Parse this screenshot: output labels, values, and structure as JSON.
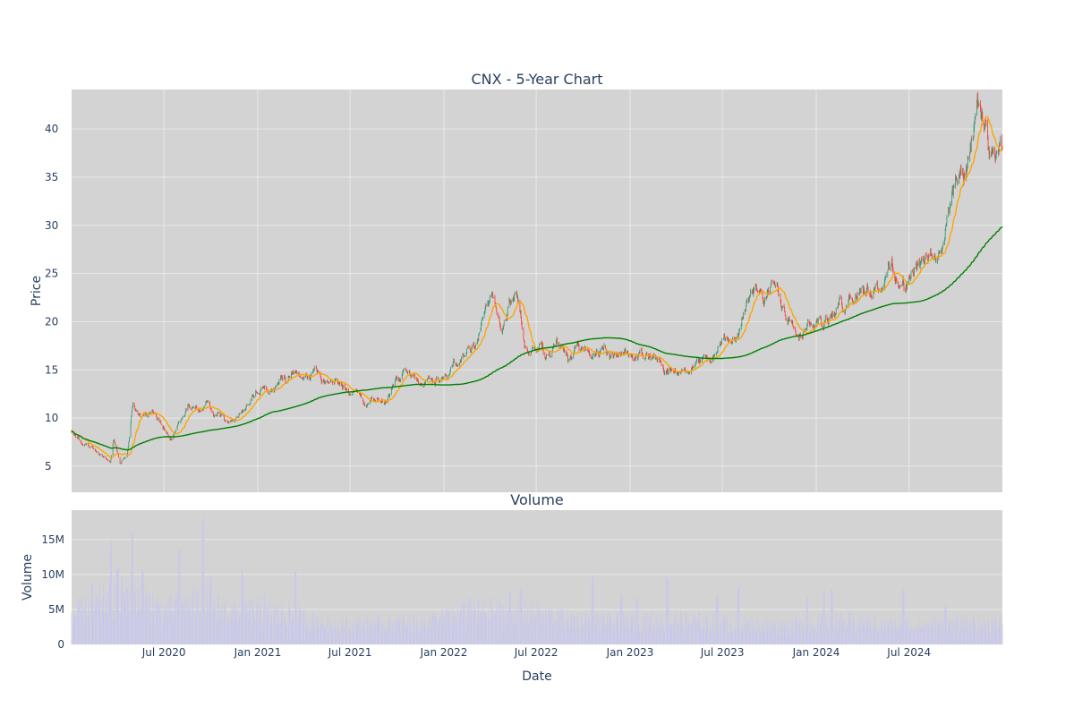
{
  "chart_data": {
    "type": "candlestick",
    "title": "CNX - 5-Year Chart",
    "price_panel": {
      "ylabel": "Price",
      "yticks": [
        5,
        10,
        15,
        20,
        25,
        30,
        35,
        40
      ],
      "ylim": [
        2.3,
        44.1
      ],
      "colors": {
        "up": "#3d9970",
        "down": "#ff4136",
        "ma_short": "#ffa500",
        "ma_long": "#008000"
      },
      "close_anchors": [
        [
          "2020-01-02",
          8.5
        ],
        [
          "2020-01-20",
          7.5
        ],
        [
          "2020-02-10",
          6.8
        ],
        [
          "2020-02-28",
          6.2
        ],
        [
          "2020-03-18",
          5.0
        ],
        [
          "2020-03-25",
          7.5
        ],
        [
          "2020-04-06",
          5.2
        ],
        [
          "2020-04-20",
          6.5
        ],
        [
          "2020-05-01",
          11.5
        ],
        [
          "2020-05-15",
          10.2
        ],
        [
          "2020-06-01",
          10.5
        ],
        [
          "2020-06-15",
          10.8
        ],
        [
          "2020-07-01",
          9.5
        ],
        [
          "2020-07-15",
          8.5
        ],
        [
          "2020-08-01",
          9.5
        ],
        [
          "2020-08-20",
          11.5
        ],
        [
          "2020-09-10",
          10.5
        ],
        [
          "2020-09-25",
          11.2
        ],
        [
          "2020-10-15",
          10.2
        ],
        [
          "2020-11-01",
          9.0
        ],
        [
          "2020-11-20",
          9.8
        ],
        [
          "2020-12-10",
          11.0
        ],
        [
          "2021-01-01",
          13.0
        ],
        [
          "2021-01-20",
          12.5
        ],
        [
          "2021-02-10",
          13.5
        ],
        [
          "2021-03-01",
          14.2
        ],
        [
          "2021-03-15",
          15.2
        ],
        [
          "2021-04-01",
          14.0
        ],
        [
          "2021-05-01",
          14.2
        ],
        [
          "2021-06-01",
          14.0
        ],
        [
          "2021-06-20",
          13.2
        ],
        [
          "2021-07-10",
          12.5
        ],
        [
          "2021-08-01",
          11.2
        ],
        [
          "2021-08-20",
          11.5
        ],
        [
          "2021-09-10",
          12.0
        ],
        [
          "2021-10-01",
          13.5
        ],
        [
          "2021-10-20",
          15.0
        ],
        [
          "2021-11-10",
          14.5
        ],
        [
          "2021-12-01",
          13.8
        ],
        [
          "2022-01-01",
          14.5
        ],
        [
          "2022-02-01",
          16.0
        ],
        [
          "2022-03-01",
          17.5
        ],
        [
          "2022-03-20",
          21.0
        ],
        [
          "2022-04-10",
          21.5
        ],
        [
          "2022-04-25",
          19.5
        ],
        [
          "2022-05-10",
          22.0
        ],
        [
          "2022-05-25",
          22.5
        ],
        [
          "2022-06-10",
          17.0
        ],
        [
          "2022-06-25",
          16.5
        ],
        [
          "2022-07-10",
          18.0
        ],
        [
          "2022-07-25",
          16.5
        ],
        [
          "2022-08-10",
          17.5
        ],
        [
          "2022-09-01",
          15.5
        ],
        [
          "2022-09-20",
          17.5
        ],
        [
          "2022-10-10",
          18.0
        ],
        [
          "2022-10-25",
          17.0
        ],
        [
          "2022-11-10",
          16.5
        ],
        [
          "2022-12-01",
          16.2
        ],
        [
          "2023-01-01",
          16.0
        ],
        [
          "2023-02-01",
          16.5
        ],
        [
          "2023-03-01",
          15.5
        ],
        [
          "2023-04-01",
          15.5
        ],
        [
          "2023-05-01",
          16.0
        ],
        [
          "2023-05-25",
          15.5
        ],
        [
          "2023-06-10",
          16.5
        ],
        [
          "2023-07-01",
          17.5
        ],
        [
          "2023-07-20",
          18.5
        ],
        [
          "2023-08-10",
          21.0
        ],
        [
          "2023-09-01",
          22.5
        ],
        [
          "2023-09-20",
          22.0
        ],
        [
          "2023-10-10",
          23.0
        ],
        [
          "2023-11-01",
          21.5
        ],
        [
          "2023-12-01",
          20.0
        ],
        [
          "2023-12-20",
          20.5
        ],
        [
          "2024-01-15",
          19.8
        ],
        [
          "2024-02-01",
          20.5
        ],
        [
          "2024-03-01",
          22.0
        ],
        [
          "2024-04-01",
          24.0
        ],
        [
          "2024-05-01",
          24.0
        ],
        [
          "2024-06-01",
          25.5
        ],
        [
          "2024-06-20",
          24.0
        ],
        [
          "2024-07-10",
          25.5
        ],
        [
          "2024-08-01",
          25.5
        ],
        [
          "2024-08-20",
          26.5
        ],
        [
          "2024-09-05",
          28.0
        ],
        [
          "2024-09-20",
          32.0
        ],
        [
          "2024-10-05",
          35.0
        ],
        [
          "2024-10-20",
          35.5
        ],
        [
          "2024-11-05",
          38.5
        ],
        [
          "2024-11-15",
          41.0
        ],
        [
          "2024-11-25",
          40.0
        ],
        [
          "2024-12-05",
          36.0
        ],
        [
          "2024-12-15",
          36.5
        ],
        [
          "2024-12-31",
          37.0
        ]
      ]
    },
    "volume_panel": {
      "title": "Volume",
      "ylabel": "Volume",
      "yticks": [
        0,
        5000000,
        10000000,
        15000000
      ],
      "ytick_labels": [
        "0",
        "5M",
        "10M",
        "15M"
      ],
      "ylim": [
        0,
        19200000
      ],
      "color": "#c8c8ec",
      "level_anchors": [
        [
          "2020-01-02",
          4500000
        ],
        [
          "2020-03-01",
          6500000
        ],
        [
          "2020-05-01",
          8000000
        ],
        [
          "2020-07-01",
          5000000
        ],
        [
          "2020-09-15",
          6500000
        ],
        [
          "2020-11-01",
          5000000
        ],
        [
          "2021-01-01",
          5000000
        ],
        [
          "2021-03-01",
          4500000
        ],
        [
          "2021-06-01",
          3000000
        ],
        [
          "2021-09-01",
          3200000
        ],
        [
          "2021-12-01",
          3500000
        ],
        [
          "2022-03-01",
          5000000
        ],
        [
          "2022-06-01",
          5000000
        ],
        [
          "2022-09-01",
          4000000
        ],
        [
          "2022-12-01",
          3500000
        ],
        [
          "2023-03-01",
          3500000
        ],
        [
          "2023-06-01",
          3500000
        ],
        [
          "2023-09-01",
          3000000
        ],
        [
          "2023-12-01",
          3000000
        ],
        [
          "2024-03-01",
          3500000
        ],
        [
          "2024-06-01",
          2800000
        ],
        [
          "2024-09-01",
          3000000
        ],
        [
          "2024-12-31",
          3200000
        ]
      ],
      "spikes": [
        [
          "2020-02-10",
          9000000
        ],
        [
          "2020-03-20",
          15200000
        ],
        [
          "2020-04-01",
          11500000
        ],
        [
          "2020-05-01",
          17500000
        ],
        [
          "2020-05-20",
          11000000
        ],
        [
          "2020-06-01",
          7500000
        ],
        [
          "2020-08-01",
          14500000
        ],
        [
          "2020-09-15",
          18500000
        ],
        [
          "2020-10-01",
          9800000
        ],
        [
          "2020-12-01",
          10800000
        ],
        [
          "2021-01-15",
          7500000
        ],
        [
          "2021-03-15",
          11000000
        ],
        [
          "2022-02-20",
          7000000
        ],
        [
          "2022-05-10",
          8000000
        ],
        [
          "2022-06-01",
          8200000
        ],
        [
          "2022-10-20",
          10000000
        ],
        [
          "2022-12-15",
          7000000
        ],
        [
          "2023-01-15",
          7000000
        ],
        [
          "2023-03-15",
          9800000
        ],
        [
          "2023-06-20",
          7000000
        ],
        [
          "2023-08-01",
          8500000
        ],
        [
          "2023-12-15",
          7000000
        ],
        [
          "2024-01-15",
          8000000
        ],
        [
          "2024-02-01",
          8000000
        ],
        [
          "2024-06-20",
          8000000
        ],
        [
          "2024-09-10",
          6000000
        ]
      ]
    },
    "xaxis": {
      "xlabel": "Date",
      "range": [
        "2020-01-02",
        "2024-12-31"
      ],
      "ticks": [
        "2020-07-01",
        "2021-01-01",
        "2021-07-01",
        "2022-01-01",
        "2022-07-01",
        "2023-01-01",
        "2023-07-01",
        "2024-01-01",
        "2024-07-01"
      ],
      "tick_labels": [
        "Jul 2020",
        "Jan 2021",
        "Jul 2021",
        "Jan 2022",
        "Jul 2022",
        "Jan 2023",
        "Jul 2023",
        "Jan 2024",
        "Jul 2024"
      ]
    },
    "moving_averages": [
      20,
      200
    ],
    "grid": true,
    "plot_bgcolor": "#d3d3d3"
  }
}
